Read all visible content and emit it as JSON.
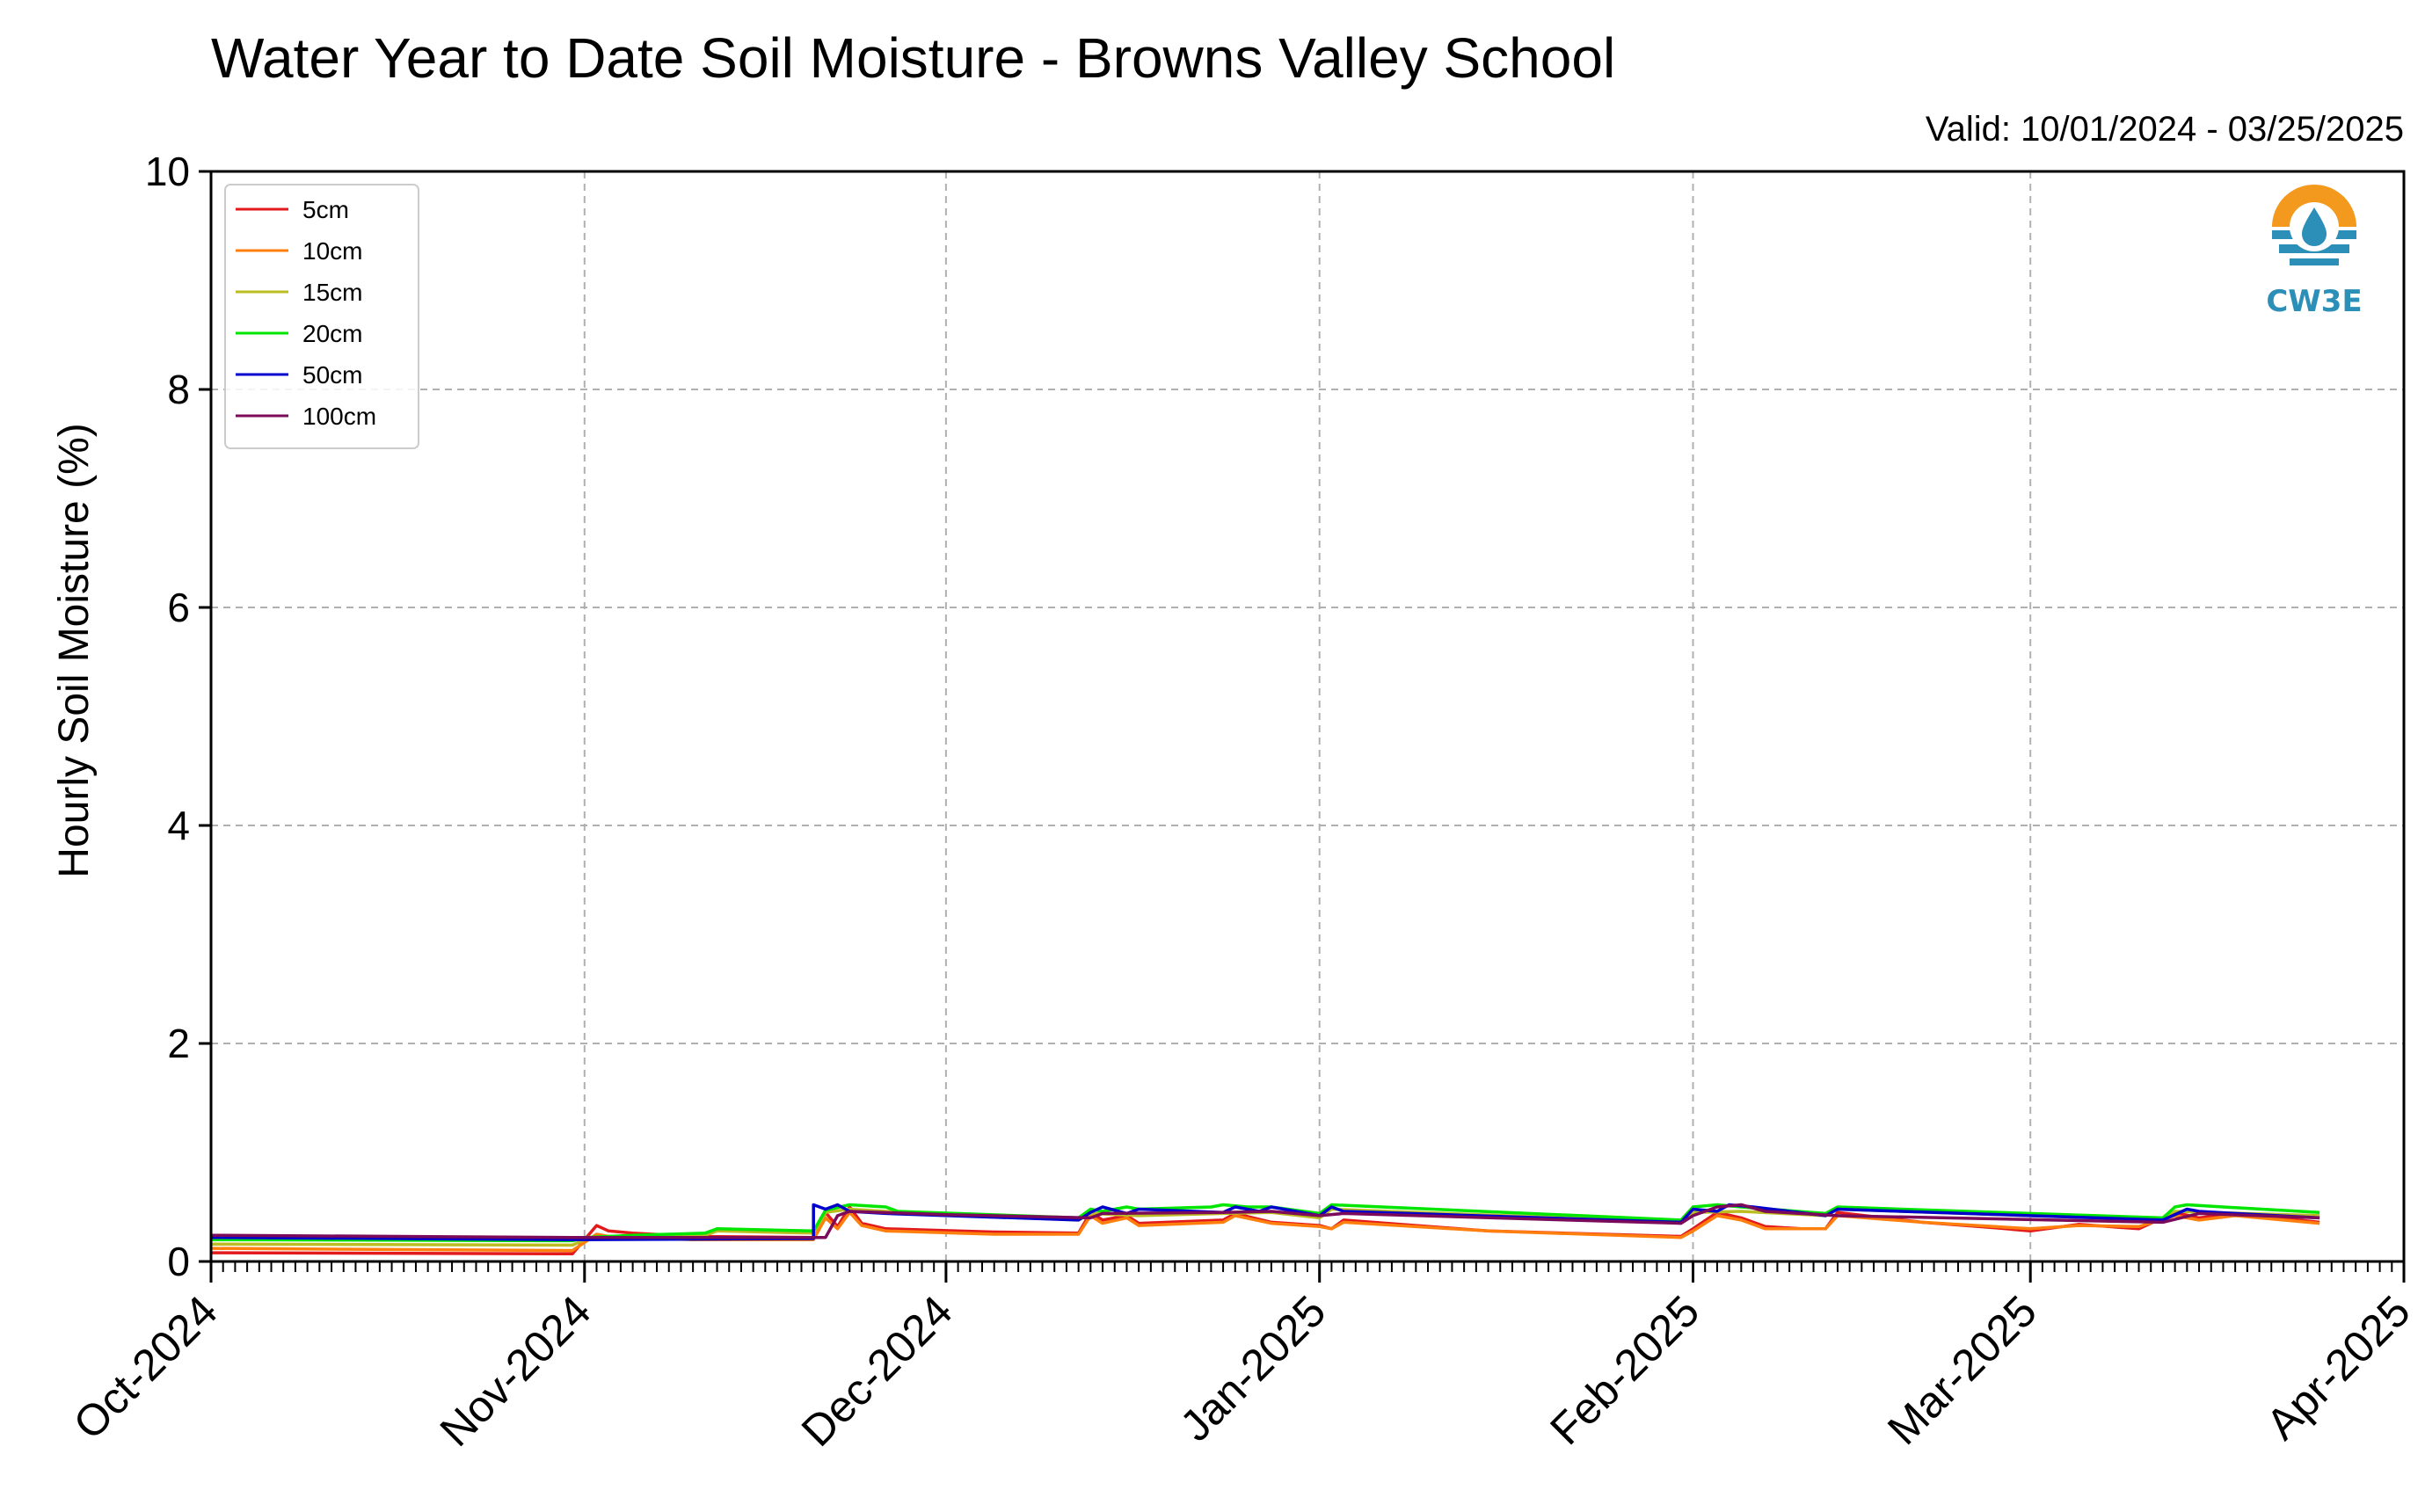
{
  "chart_data": {
    "type": "line",
    "title": "Water Year to Date Soil Moisture - Browns Valley School",
    "subtitle": "Valid: 10/01/2024 - 03/25/2025",
    "xlabel": "",
    "ylabel": "Hourly Soil Moisture (%)",
    "ylim": [
      0,
      10
    ],
    "yticks": [
      "0",
      "2",
      "4",
      "6",
      "8",
      "10"
    ],
    "xlim": [
      "2024-10-01",
      "2025-04-01"
    ],
    "xticks": [
      {
        "date": "2024-10-01",
        "label": "Oct-2024"
      },
      {
        "date": "2024-11-01",
        "label": "Nov-2024"
      },
      {
        "date": "2024-12-01",
        "label": "Dec-2024"
      },
      {
        "date": "2025-01-01",
        "label": "Jan-2025"
      },
      {
        "date": "2025-02-01",
        "label": "Feb-2025"
      },
      {
        "date": "2025-03-01",
        "label": "Mar-2025"
      },
      {
        "date": "2025-04-01",
        "label": "Apr-2025"
      }
    ],
    "grid": true,
    "legend_position": "top-left",
    "logo_text": "CW3E",
    "series": [
      {
        "name": "5cm",
        "color": "#e31a1c",
        "x": [
          "2024-10-01",
          "2024-10-31",
          "2024-11-02",
          "2024-11-03",
          "2024-11-05",
          "2024-11-10",
          "2024-11-20",
          "2024-11-21",
          "2024-11-22",
          "2024-11-23",
          "2024-11-24",
          "2024-11-26",
          "2024-12-05",
          "2024-12-12",
          "2024-12-13",
          "2024-12-14",
          "2024-12-16",
          "2024-12-17",
          "2024-12-24",
          "2024-12-25",
          "2024-12-28",
          "2025-01-01",
          "2025-01-02",
          "2025-01-03",
          "2025-01-15",
          "2025-01-31",
          "2025-02-01",
          "2025-02-03",
          "2025-02-05",
          "2025-02-07",
          "2025-02-10",
          "2025-02-12",
          "2025-02-13",
          "2025-02-20",
          "2025-02-26",
          "2025-03-01",
          "2025-03-05",
          "2025-03-10",
          "2025-03-13",
          "2025-03-15",
          "2025-03-18",
          "2025-03-25"
        ],
        "y": [
          0.08,
          0.07,
          0.33,
          0.28,
          0.26,
          0.23,
          0.22,
          0.45,
          0.32,
          0.5,
          0.35,
          0.3,
          0.27,
          0.26,
          0.45,
          0.38,
          0.42,
          0.35,
          0.38,
          0.44,
          0.36,
          0.33,
          0.3,
          0.38,
          0.28,
          0.23,
          0.3,
          0.45,
          0.4,
          0.32,
          0.3,
          0.3,
          0.45,
          0.36,
          0.31,
          0.28,
          0.34,
          0.3,
          0.45,
          0.4,
          0.44,
          0.36
        ]
      },
      {
        "name": "10cm",
        "color": "#ff7f0e",
        "x": [
          "2024-10-01",
          "2024-10-31",
          "2024-11-02",
          "2024-11-03",
          "2024-11-05",
          "2024-11-10",
          "2024-11-20",
          "2024-11-21",
          "2024-11-22",
          "2024-11-23",
          "2024-11-24",
          "2024-11-26",
          "2024-12-05",
          "2024-12-12",
          "2024-12-13",
          "2024-12-14",
          "2024-12-16",
          "2024-12-17",
          "2024-12-24",
          "2024-12-25",
          "2024-12-28",
          "2025-01-01",
          "2025-01-02",
          "2025-01-03",
          "2025-01-15",
          "2025-01-31",
          "2025-02-01",
          "2025-02-03",
          "2025-02-05",
          "2025-02-07",
          "2025-02-10",
          "2025-02-12",
          "2025-02-13",
          "2025-02-20",
          "2025-02-26",
          "2025-03-01",
          "2025-03-05",
          "2025-03-10",
          "2025-03-13",
          "2025-03-15",
          "2025-03-18",
          "2025-03-25"
        ],
        "y": [
          0.12,
          0.1,
          0.25,
          0.23,
          0.22,
          0.2,
          0.2,
          0.4,
          0.3,
          0.45,
          0.33,
          0.28,
          0.25,
          0.25,
          0.42,
          0.35,
          0.4,
          0.33,
          0.36,
          0.42,
          0.35,
          0.32,
          0.3,
          0.36,
          0.28,
          0.22,
          0.28,
          0.42,
          0.38,
          0.3,
          0.3,
          0.3,
          0.42,
          0.36,
          0.32,
          0.3,
          0.33,
          0.32,
          0.42,
          0.38,
          0.42,
          0.35
        ]
      },
      {
        "name": "15cm",
        "color": "#bcbd22",
        "x": [
          "2024-10-01",
          "2024-10-31",
          "2024-11-01",
          "2024-11-05",
          "2024-11-11",
          "2024-11-12",
          "2024-11-20",
          "2024-11-21",
          "2024-11-23",
          "2024-11-26",
          "2024-12-12",
          "2024-12-13",
          "2024-12-17",
          "2024-12-24",
          "2024-12-28",
          "2025-01-01",
          "2025-01-02",
          "2025-01-31",
          "2025-02-01",
          "2025-02-05",
          "2025-02-12",
          "2025-02-13",
          "2025-03-12",
          "2025-03-13",
          "2025-03-25"
        ],
        "y": [
          0.16,
          0.15,
          0.2,
          0.22,
          0.24,
          0.28,
          0.26,
          0.45,
          0.48,
          0.46,
          0.38,
          0.44,
          0.42,
          0.44,
          0.45,
          0.4,
          0.48,
          0.36,
          0.45,
          0.46,
          0.42,
          0.48,
          0.38,
          0.46,
          0.42
        ]
      },
      {
        "name": "20cm",
        "color": "#00e600",
        "x": [
          "2024-10-01",
          "2024-10-31",
          "2024-11-01",
          "2024-11-05",
          "2024-11-11",
          "2024-11-12",
          "2024-11-20",
          "2024-11-21",
          "2024-11-23",
          "2024-11-26",
          "2024-11-27",
          "2024-12-12",
          "2024-12-13",
          "2024-12-14",
          "2024-12-16",
          "2024-12-17",
          "2024-12-23",
          "2024-12-24",
          "2024-12-26",
          "2024-12-28",
          "2025-01-01",
          "2025-01-02",
          "2025-01-31",
          "2025-02-01",
          "2025-02-03",
          "2025-02-05",
          "2025-02-12",
          "2025-02-13",
          "2025-03-12",
          "2025-03-13",
          "2025-03-14",
          "2025-03-17",
          "2025-03-25"
        ],
        "y": [
          0.2,
          0.19,
          0.22,
          0.24,
          0.26,
          0.3,
          0.28,
          0.47,
          0.52,
          0.5,
          0.46,
          0.4,
          0.48,
          0.46,
          0.5,
          0.48,
          0.5,
          0.52,
          0.5,
          0.5,
          0.44,
          0.52,
          0.38,
          0.5,
          0.52,
          0.5,
          0.44,
          0.5,
          0.4,
          0.5,
          0.52,
          0.5,
          0.45
        ]
      },
      {
        "name": "50cm",
        "color": "#0000cc",
        "x": [
          "2024-10-01",
          "2024-10-31",
          "2024-11-20",
          "2024-11-20",
          "2024-11-21",
          "2024-11-22",
          "2024-11-23",
          "2024-11-26",
          "2024-12-12",
          "2024-12-13",
          "2024-12-14",
          "2024-12-16",
          "2024-12-17",
          "2024-12-24",
          "2024-12-25",
          "2024-12-27",
          "2024-12-28",
          "2025-01-01",
          "2025-01-02",
          "2025-01-03",
          "2025-01-31",
          "2025-02-01",
          "2025-02-03",
          "2025-02-04",
          "2025-02-06",
          "2025-02-12",
          "2025-02-13",
          "2025-03-12",
          "2025-03-14",
          "2025-03-15",
          "2025-03-18",
          "2025-03-25"
        ],
        "y": [
          0.22,
          0.2,
          0.21,
          0.52,
          0.48,
          0.52,
          0.46,
          0.44,
          0.38,
          0.45,
          0.5,
          0.44,
          0.48,
          0.45,
          0.5,
          0.46,
          0.5,
          0.42,
          0.5,
          0.46,
          0.36,
          0.48,
          0.46,
          0.52,
          0.5,
          0.42,
          0.48,
          0.38,
          0.48,
          0.46,
          0.44,
          0.4
        ]
      },
      {
        "name": "100cm",
        "color": "#7b0a5a",
        "x": [
          "2024-10-01",
          "2024-10-31",
          "2024-11-21",
          "2024-11-22",
          "2024-11-23",
          "2024-12-01",
          "2024-12-13",
          "2024-12-14",
          "2024-12-24",
          "2024-12-28",
          "2025-01-01",
          "2025-01-03",
          "2025-01-31",
          "2025-02-01",
          "2025-02-03",
          "2025-02-05",
          "2025-02-07",
          "2025-02-13",
          "2025-03-12",
          "2025-03-15",
          "2025-03-25"
        ],
        "y": [
          0.24,
          0.22,
          0.22,
          0.42,
          0.46,
          0.43,
          0.4,
          0.44,
          0.45,
          0.46,
          0.42,
          0.44,
          0.35,
          0.42,
          0.5,
          0.52,
          0.46,
          0.42,
          0.36,
          0.44,
          0.4
        ]
      }
    ]
  }
}
